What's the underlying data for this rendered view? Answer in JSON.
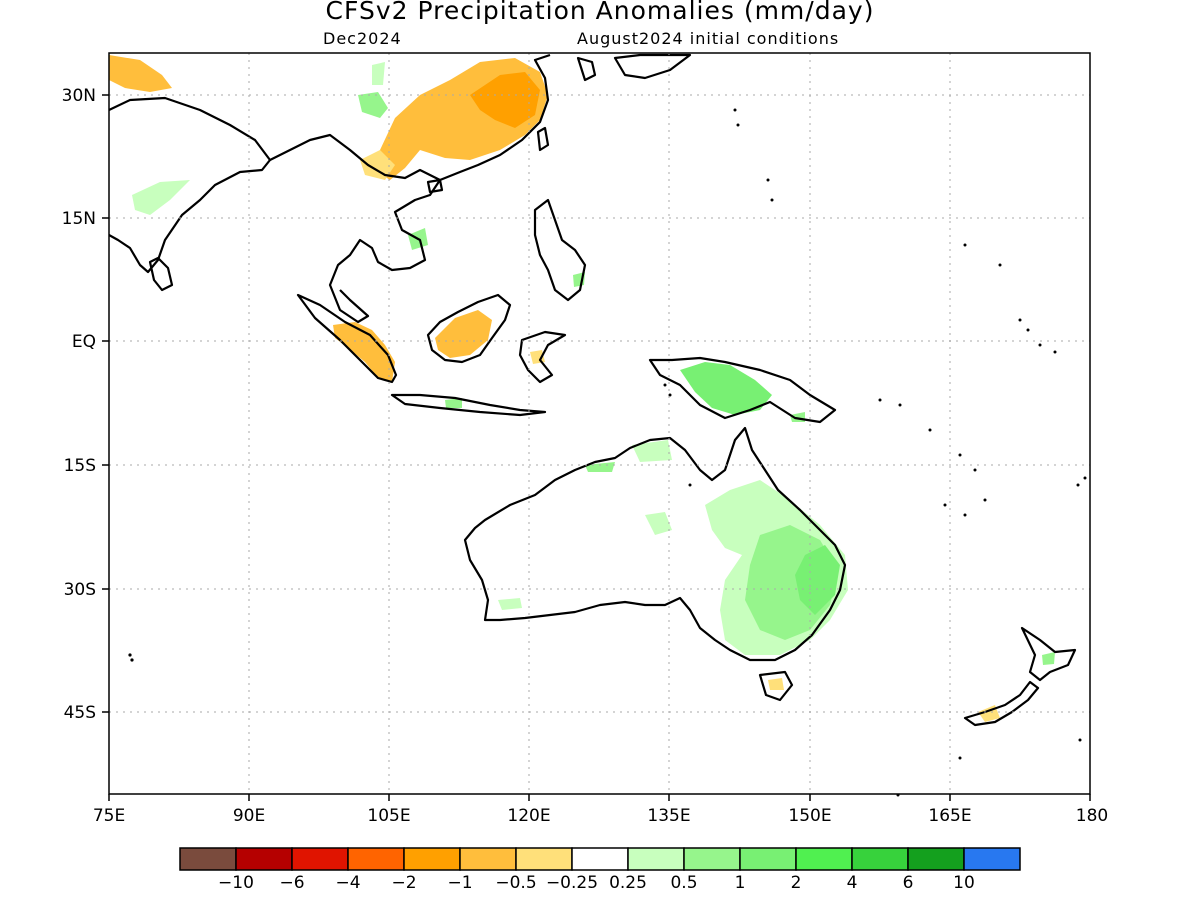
{
  "title": "CFSv2 Precipitation Anomalies (mm/day)",
  "valid_month": "Dec2024",
  "init_conditions": "August2024 initial conditions",
  "lat_ticks": [
    "30N",
    "15N",
    "EQ",
    "15S",
    "30S",
    "45S"
  ],
  "lon_ticks": [
    "75E",
    "90E",
    "105E",
    "120E",
    "135E",
    "150E",
    "165E",
    "180"
  ],
  "colorbar": {
    "colors": [
      "#7a4b3d",
      "#b50000",
      "#e01400",
      "#ff6400",
      "#ffa000",
      "#ffbe3c",
      "#ffe07a",
      "#ffffff",
      "#c8ffbe",
      "#96f58c",
      "#78f073",
      "#50f050",
      "#37d23c",
      "#14a01e",
      "#2878f0"
    ],
    "labels": [
      "−10",
      "−6",
      "−4",
      "−2",
      "−1",
      "−0.5",
      "−0.25",
      "0.25",
      "0.5",
      "1",
      "2",
      "4",
      "6",
      "10"
    ]
  },
  "palette": {
    "dry_strong": "#ff9f1e",
    "dry_moderate": "#ffbe3c",
    "dry_weak": "#ffe07a",
    "wet_weak": "#c8ffbe",
    "wet_moderate": "#96f58c",
    "wet_strong": "#78f073",
    "wet_stronger": "#50f050"
  },
  "map_extent": {
    "lon": [
      75,
      180
    ],
    "lat": [
      -55,
      35
    ]
  }
}
